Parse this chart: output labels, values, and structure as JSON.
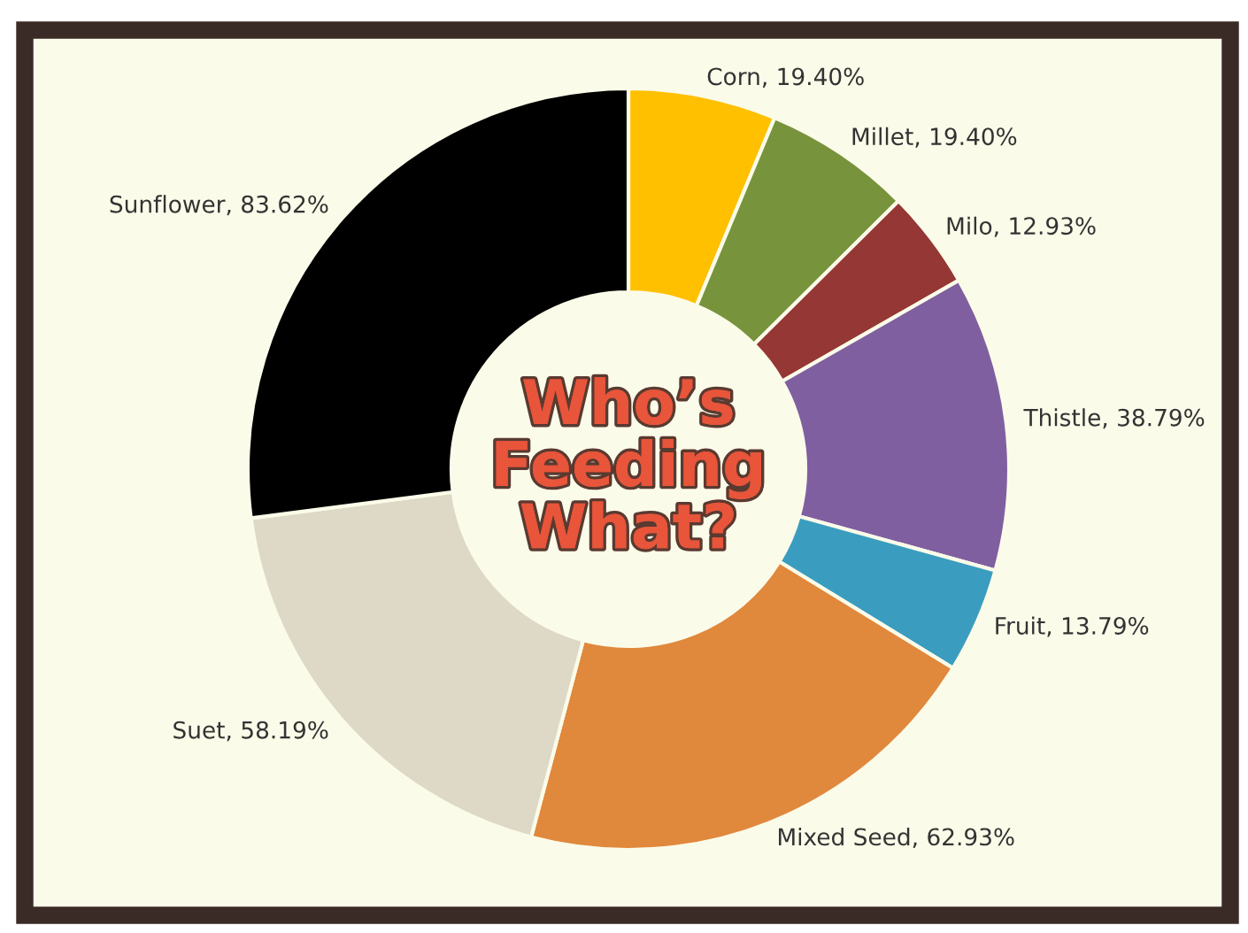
{
  "chart_data": {
    "type": "donut",
    "title": "Who’s\nFeeding\nWhat?",
    "categories": [
      "Corn",
      "Millet",
      "Milo",
      "Thistle",
      "Fruit",
      "Mixed Seed",
      "Suet",
      "Sunflower"
    ],
    "values": [
      19.4,
      19.4,
      12.93,
      38.79,
      13.79,
      62.93,
      58.19,
      83.62
    ],
    "value_labels": [
      "19.40%",
      "19.40%",
      "12.93%",
      "38.79%",
      "13.79%",
      "62.93%",
      "58.19%",
      "83.62%"
    ],
    "colors": [
      "#ffc000",
      "#77933c",
      "#953735",
      "#7f5fa0",
      "#3a9dbf",
      "#e0883c",
      "#ddd9c6",
      "#000000"
    ]
  }
}
